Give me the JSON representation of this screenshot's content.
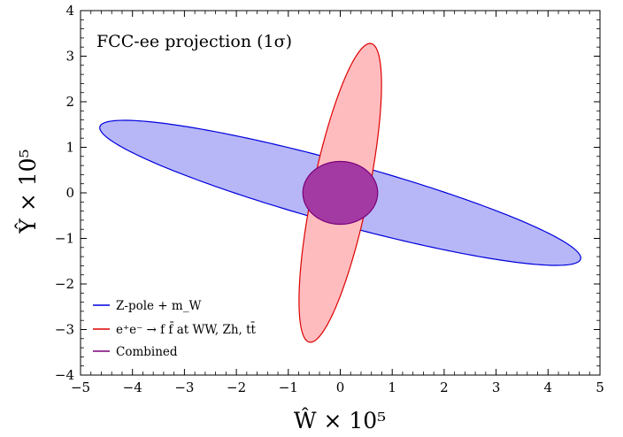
{
  "chart_data": {
    "type": "contour",
    "annotation": "FCC-ee projection (1σ)",
    "xlabel": "Ŵ × 10⁵",
    "ylabel": "Ŷ × 10⁵",
    "xlim": [
      -5,
      5
    ],
    "ylim": [
      -4,
      4
    ],
    "xticks": [
      -5,
      -4,
      -3,
      -2,
      -1,
      0,
      1,
      2,
      3,
      4,
      5
    ],
    "yticks": [
      -4,
      -3,
      -2,
      -1,
      0,
      1,
      2,
      3,
      4
    ],
    "grid": false,
    "legend_position": "bottom-left",
    "series": [
      {
        "name": "Z-pole + m_W",
        "shape": "ellipse",
        "center": [
          0,
          0
        ],
        "semi_major": 4.85,
        "semi_minor": 0.67,
        "angle_deg": -17.5,
        "fill": "#b7b7f7",
        "stroke": "#0000dd"
      },
      {
        "name": "e⁺e⁻ → f f̄ at WW, Zh, tt̄",
        "shape": "ellipse",
        "center": [
          0,
          0
        ],
        "semi_major": 3.33,
        "semi_minor": 0.54,
        "angle_deg": 79.8,
        "fill": "#ffbcbf",
        "stroke": "#dd0000"
      },
      {
        "name": "Combined",
        "shape": "ellipse",
        "center": [
          0,
          0
        ],
        "semi_major": 0.72,
        "semi_minor": 0.69,
        "angle_deg": 0,
        "fill": "#a33aa3",
        "stroke": "#7a007a"
      }
    ]
  }
}
